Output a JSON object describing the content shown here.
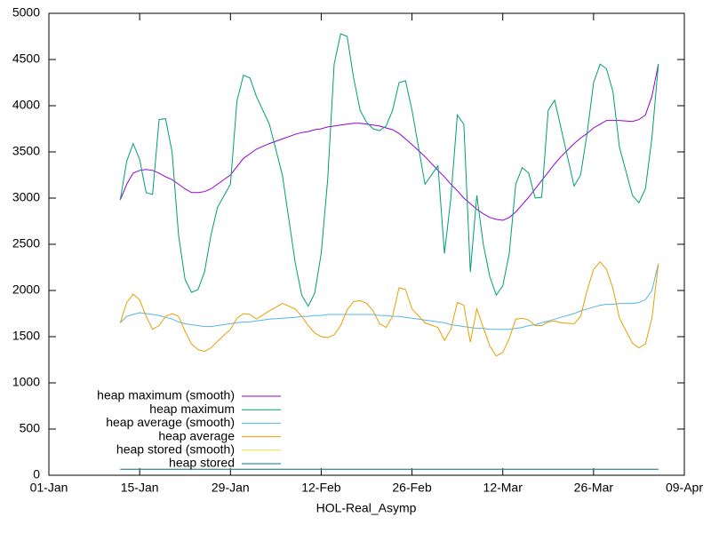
{
  "chart_data": {
    "type": "line",
    "xlabel": "HOL-Real_Asymp",
    "x": [
      "12-Jan",
      "13-Jan",
      "14-Jan",
      "15-Jan",
      "16-Jan",
      "17-Jan",
      "18-Jan",
      "19-Jan",
      "20-Jan",
      "21-Jan",
      "22-Jan",
      "23-Jan",
      "24-Jan",
      "25-Jan",
      "26-Jan",
      "27-Jan",
      "29-Jan",
      "30-Jan",
      "31-Jan",
      "01-Feb",
      "02-Feb",
      "04-Feb",
      "06-Feb",
      "08-Feb",
      "09-Feb",
      "10-Feb",
      "11-Feb",
      "12-Feb",
      "13-Feb",
      "14-Feb",
      "15-Feb",
      "16-Feb",
      "17-Feb",
      "18-Feb",
      "19-Feb",
      "20-Feb",
      "21-Feb",
      "22-Feb",
      "23-Feb",
      "24-Feb",
      "25-Feb",
      "26-Feb",
      "28-Feb",
      "02-Mar",
      "03-Mar",
      "04-Mar",
      "05-Mar",
      "06-Mar",
      "07-Mar",
      "08-Mar",
      "09-Mar",
      "10-Mar",
      "11-Mar",
      "12-Mar",
      "13-Mar",
      "14-Mar",
      "15-Mar",
      "16-Mar",
      "17-Mar",
      "18-Mar",
      "19-Mar",
      "20-Mar",
      "21-Mar",
      "23-Mar",
      "24-Mar",
      "25-Mar",
      "26-Mar",
      "27-Mar",
      "28-Mar",
      "29-Mar",
      "30-Mar",
      "01-Apr",
      "02-Apr",
      "03-Apr",
      "04-Apr",
      "05-Apr"
    ],
    "series": [
      {
        "name": "heap maximum (smooth)",
        "color": "#9400d3",
        "values": [
          2980,
          3150,
          3270,
          3300,
          3310,
          3300,
          3270,
          3230,
          3200,
          3150,
          3100,
          3060,
          3060,
          3070,
          3100,
          3150,
          3250,
          3340,
          3430,
          3480,
          3530,
          3590,
          3640,
          3690,
          3710,
          3720,
          3740,
          3750,
          3770,
          3780,
          3790,
          3800,
          3810,
          3810,
          3800,
          3790,
          3780,
          3760,
          3740,
          3700,
          3640,
          3580,
          3450,
          3300,
          3230,
          3150,
          3080,
          3000,
          2940,
          2880,
          2830,
          2790,
          2770,
          2760,
          2790,
          2850,
          2930,
          3010,
          3100,
          3190,
          3280,
          3370,
          3450,
          3590,
          3650,
          3700,
          3760,
          3800,
          3840,
          3840,
          3840,
          3830,
          3850,
          3900,
          4100,
          4450
        ]
      },
      {
        "name": "heap maximum",
        "color": "#009e73",
        "values": [
          2980,
          3400,
          3590,
          3420,
          3060,
          3040,
          3850,
          3860,
          3500,
          2600,
          2120,
          1980,
          2010,
          2200,
          2600,
          2900,
          3150,
          4050,
          4330,
          4300,
          4100,
          3800,
          3250,
          2300,
          1950,
          1830,
          1970,
          2400,
          3200,
          4450,
          4780,
          4750,
          4300,
          3950,
          3820,
          3750,
          3730,
          3780,
          3950,
          4250,
          4270,
          3950,
          3150,
          3350,
          2400,
          3000,
          3900,
          3800,
          2200,
          3030,
          2500,
          2150,
          1950,
          2050,
          2400,
          3150,
          3330,
          3270,
          3000,
          3010,
          3950,
          4060,
          3750,
          3130,
          3250,
          3700,
          4250,
          4450,
          4400,
          4150,
          3550,
          3030,
          2950,
          3100,
          3650,
          4450
        ]
      },
      {
        "name": "heap average (smooth)",
        "color": "#56b4e9",
        "values": [
          1650,
          1720,
          1740,
          1760,
          1750,
          1740,
          1730,
          1710,
          1690,
          1660,
          1640,
          1630,
          1620,
          1610,
          1610,
          1620,
          1640,
          1650,
          1660,
          1660,
          1670,
          1690,
          1700,
          1710,
          1720,
          1720,
          1730,
          1730,
          1740,
          1740,
          1740,
          1740,
          1740,
          1740,
          1740,
          1740,
          1730,
          1730,
          1720,
          1720,
          1710,
          1700,
          1680,
          1660,
          1650,
          1630,
          1620,
          1610,
          1600,
          1590,
          1590,
          1580,
          1580,
          1580,
          1580,
          1590,
          1600,
          1620,
          1630,
          1650,
          1670,
          1690,
          1710,
          1750,
          1780,
          1800,
          1820,
          1840,
          1850,
          1850,
          1860,
          1860,
          1870,
          1900,
          2000,
          2290
        ]
      },
      {
        "name": "heap average",
        "color": "#e69f00",
        "values": [
          1650,
          1870,
          1960,
          1900,
          1720,
          1580,
          1620,
          1720,
          1750,
          1720,
          1560,
          1420,
          1360,
          1340,
          1380,
          1450,
          1580,
          1700,
          1750,
          1740,
          1690,
          1780,
          1860,
          1800,
          1720,
          1620,
          1540,
          1500,
          1490,
          1520,
          1620,
          1790,
          1880,
          1890,
          1860,
          1780,
          1640,
          1600,
          1720,
          2030,
          2010,
          1800,
          1650,
          1600,
          1460,
          1580,
          1870,
          1840,
          1440,
          1800,
          1600,
          1400,
          1290,
          1330,
          1480,
          1690,
          1700,
          1680,
          1620,
          1620,
          1660,
          1670,
          1650,
          1640,
          1720,
          2000,
          2230,
          2310,
          2230,
          2020,
          1700,
          1430,
          1380,
          1420,
          1700,
          2290
        ]
      },
      {
        "name": "heap stored (smooth)",
        "color": "#f0e442",
        "values": [
          65,
          65,
          65,
          65,
          65,
          65,
          65,
          65,
          65,
          65,
          65,
          65,
          65,
          65,
          65,
          65,
          65,
          65,
          65,
          65,
          65,
          65,
          65,
          65,
          65,
          65,
          65,
          65,
          65,
          65,
          65,
          65,
          65,
          65,
          65,
          65,
          65,
          65,
          65,
          65,
          65,
          65,
          65,
          65,
          65,
          65,
          65,
          65,
          65,
          65,
          65,
          65,
          65,
          65,
          65,
          65,
          65,
          65,
          65,
          65,
          65,
          65,
          65,
          65,
          65,
          65,
          65,
          65,
          65,
          65,
          65,
          65,
          65,
          65,
          65,
          65
        ]
      },
      {
        "name": "heap stored",
        "color": "#0072b2",
        "values": [
          65,
          65,
          65,
          65,
          65,
          65,
          65,
          65,
          65,
          65,
          65,
          65,
          65,
          65,
          65,
          65,
          65,
          65,
          65,
          65,
          65,
          65,
          65,
          65,
          65,
          65,
          65,
          65,
          65,
          65,
          65,
          65,
          65,
          65,
          65,
          65,
          65,
          65,
          65,
          65,
          65,
          65,
          65,
          65,
          65,
          65,
          65,
          65,
          65,
          65,
          65,
          65,
          65,
          65,
          65,
          65,
          65,
          65,
          65,
          65,
          65,
          65,
          65,
          65,
          65,
          65,
          65,
          65,
          65,
          65,
          65,
          65,
          65,
          65,
          65,
          65
        ]
      }
    ],
    "xlim": [
      "01-Jan",
      "09-Apr"
    ],
    "xticks": [
      "01-Jan",
      "15-Jan",
      "29-Jan",
      "12-Feb",
      "26-Feb",
      "12-Mar",
      "26-Mar",
      "09-Apr"
    ],
    "ylim": [
      0,
      5000
    ],
    "yticks": [
      0,
      500,
      1000,
      1500,
      2000,
      2500,
      3000,
      3500,
      4000,
      4500,
      5000
    ],
    "grid": false,
    "legend": "bottom-left"
  }
}
